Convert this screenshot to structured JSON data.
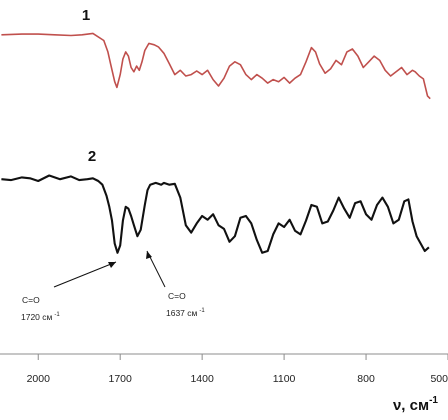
{
  "chart_data": {
    "type": "line",
    "title": "",
    "xlabel": "ν, см",
    "xlabel_sup": "-1",
    "ylabel": "",
    "xlim": [
      2140,
      500
    ],
    "x_reversed": true,
    "x_ticks": [
      2000,
      1700,
      1400,
      1100,
      800,
      500
    ],
    "y_axis_visible": false,
    "grid": false,
    "series": [
      {
        "name": "1",
        "color": "#c0504d",
        "x": [
          2135,
          2060,
          2000,
          1940,
          1880,
          1840,
          1800,
          1760,
          1745,
          1735,
          1720,
          1712,
          1700,
          1690,
          1680,
          1670,
          1660,
          1650,
          1640,
          1630,
          1620,
          1610,
          1595,
          1575,
          1560,
          1540,
          1520,
          1500,
          1480,
          1460,
          1440,
          1420,
          1400,
          1380,
          1360,
          1340,
          1320,
          1300,
          1280,
          1260,
          1240,
          1220,
          1200,
          1180,
          1160,
          1140,
          1120,
          1100,
          1080,
          1060,
          1040,
          1020,
          1000,
          985,
          970,
          950,
          930,
          910,
          890,
          870,
          850,
          830,
          810,
          790,
          770,
          750,
          730,
          710,
          690,
          670,
          650,
          630,
          620,
          605,
          590,
          575,
          565
        ],
        "y": [
          0.96,
          0.97,
          0.97,
          0.96,
          0.95,
          0.96,
          0.98,
          0.88,
          0.72,
          0.55,
          0.3,
          0.22,
          0.4,
          0.62,
          0.72,
          0.66,
          0.5,
          0.44,
          0.52,
          0.46,
          0.58,
          0.74,
          0.84,
          0.82,
          0.79,
          0.7,
          0.55,
          0.4,
          0.46,
          0.38,
          0.4,
          0.45,
          0.4,
          0.46,
          0.33,
          0.24,
          0.35,
          0.52,
          0.58,
          0.54,
          0.4,
          0.33,
          0.4,
          0.35,
          0.28,
          0.33,
          0.3,
          0.36,
          0.28,
          0.35,
          0.4,
          0.58,
          0.78,
          0.72,
          0.55,
          0.42,
          0.48,
          0.6,
          0.54,
          0.72,
          0.76,
          0.66,
          0.5,
          0.58,
          0.66,
          0.6,
          0.46,
          0.38,
          0.44,
          0.5,
          0.4,
          0.46,
          0.44,
          0.38,
          0.34,
          0.1,
          0.06
        ]
      },
      {
        "name": "2",
        "color": "#111111",
        "x": [
          2135,
          2100,
          2060,
          2030,
          2000,
          1960,
          1920,
          1880,
          1850,
          1820,
          1800,
          1780,
          1765,
          1750,
          1740,
          1730,
          1720,
          1710,
          1700,
          1690,
          1680,
          1670,
          1660,
          1650,
          1637,
          1625,
          1610,
          1600,
          1590,
          1570,
          1560,
          1550,
          1540,
          1520,
          1500,
          1480,
          1460,
          1440,
          1420,
          1400,
          1380,
          1360,
          1340,
          1320,
          1300,
          1280,
          1260,
          1240,
          1220,
          1200,
          1180,
          1160,
          1140,
          1120,
          1100,
          1080,
          1060,
          1040,
          1020,
          1000,
          980,
          960,
          940,
          920,
          900,
          880,
          860,
          840,
          820,
          800,
          780,
          760,
          740,
          720,
          700,
          680,
          660,
          645,
          630,
          615,
          600,
          585,
          570
        ],
        "y": [
          0.9,
          0.89,
          0.92,
          0.91,
          0.88,
          0.94,
          0.9,
          0.93,
          0.89,
          0.9,
          0.91,
          0.88,
          0.84,
          0.72,
          0.6,
          0.45,
          0.2,
          0.1,
          0.18,
          0.45,
          0.6,
          0.58,
          0.5,
          0.4,
          0.28,
          0.35,
          0.62,
          0.78,
          0.84,
          0.86,
          0.85,
          0.84,
          0.86,
          0.84,
          0.85,
          0.7,
          0.4,
          0.32,
          0.42,
          0.5,
          0.46,
          0.52,
          0.4,
          0.36,
          0.22,
          0.28,
          0.48,
          0.5,
          0.42,
          0.24,
          0.1,
          0.12,
          0.3,
          0.42,
          0.38,
          0.46,
          0.34,
          0.3,
          0.45,
          0.62,
          0.6,
          0.42,
          0.44,
          0.56,
          0.7,
          0.58,
          0.48,
          0.64,
          0.66,
          0.52,
          0.46,
          0.62,
          0.7,
          0.6,
          0.42,
          0.46,
          0.66,
          0.68,
          0.44,
          0.28,
          0.2,
          0.12,
          0.16
        ]
      }
    ],
    "annotations": [
      {
        "line1": "C=O",
        "line2": "1720 см",
        "sup": "-1",
        "target_series": 1,
        "target_x": 1712
      },
      {
        "line1": "C=O",
        "line2": "1637 см",
        "sup": "-1",
        "target_series": 1,
        "target_x": 1637
      }
    ]
  }
}
